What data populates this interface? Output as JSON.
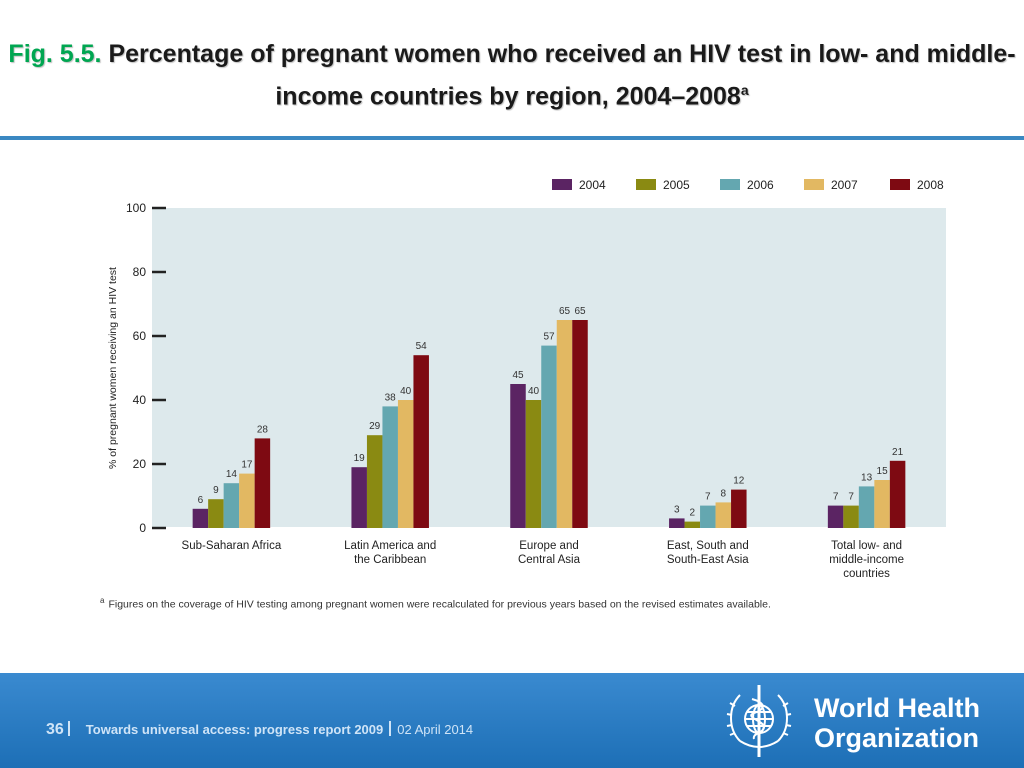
{
  "slide": {
    "title_prefix": "Fig. 5.5.",
    "title_main": "Percentage of pregnant women who received an HIV test in low- and middle-income countries by region, 2004–2008",
    "title_sup": "a",
    "footnote_marker": "a",
    "footnote": "Figures on the coverage of HIV testing among pregnant women were recalculated for previous years based on the revised estimates available.",
    "page_number": "36",
    "report_title": "Towards universal access: progress report 2009",
    "date": "02 April 2014",
    "org_name_line1": "World Health",
    "org_name_line2": "Organization"
  },
  "chart_data": {
    "type": "bar",
    "ylabel": "% of pregnant women receiving an HIV test",
    "ylim": [
      0,
      100
    ],
    "yticks": [
      0,
      20,
      40,
      60,
      80,
      100
    ],
    "legend_position": "top-right",
    "categories": [
      "Sub-Saharan Africa",
      "Latin America and the Caribbean",
      "Europe and Central Asia",
      "East, South and South-East Asia",
      "Total low- and middle-income countries"
    ],
    "category_lines": [
      [
        "Sub-Saharan Africa"
      ],
      [
        "Latin America and",
        "the Caribbean"
      ],
      [
        "Europe and",
        "Central Asia"
      ],
      [
        "East, South and",
        "South-East Asia"
      ],
      [
        "Total low- and",
        "middle-income",
        "countries"
      ]
    ],
    "series": [
      {
        "name": "2004",
        "color": "#5b2463",
        "values": [
          6,
          19,
          45,
          3,
          7
        ]
      },
      {
        "name": "2005",
        "color": "#8a8a12",
        "values": [
          9,
          29,
          40,
          2,
          7
        ]
      },
      {
        "name": "2006",
        "color": "#64a7b0",
        "values": [
          14,
          38,
          57,
          7,
          13
        ]
      },
      {
        "name": "2007",
        "color": "#e2b862",
        "values": [
          17,
          40,
          65,
          8,
          15
        ]
      },
      {
        "name": "2008",
        "color": "#7e0a12",
        "values": [
          28,
          54,
          65,
          12,
          21
        ]
      }
    ],
    "plot_background": "#dde9ec"
  }
}
